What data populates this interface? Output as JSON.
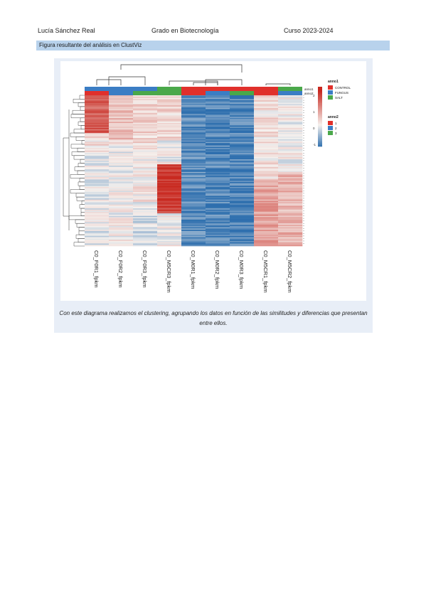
{
  "header": {
    "author": "Lucía Sánchez Real",
    "degree": "Grado en Biotecnología",
    "course": "Curso 2023-2024"
  },
  "section": {
    "title": "Figura resultante del análisis en ClustViz"
  },
  "heatmap": {
    "columns": [
      "C0_F0R1_fpkm",
      "C0_F0R2_fpkm",
      "C0_F0R3_fpkm",
      "C0_M5CR3_fpkm",
      "C0_M0R1_fpkm",
      "C0_M0R2_fpkm",
      "C0_M0R3_fpkm",
      "C0_M5CR1_fpkm",
      "C0_M5CR2_fpkm"
    ],
    "anno_labels": [
      "anno1",
      "anno2"
    ],
    "legend_anno1_title": "anno1",
    "legend_anno1": [
      {
        "label": "CONTROL",
        "color": "#e0302b"
      },
      {
        "label": "FUNGUS",
        "color": "#3b7dc4"
      },
      {
        "label": "SALT",
        "color": "#4aa84a"
      }
    ],
    "legend_anno2_title": "anno2",
    "legend_anno2": [
      {
        "label": "1",
        "color": "#e0302b"
      },
      {
        "label": "2",
        "color": "#3b7dc4"
      },
      {
        "label": "3",
        "color": "#4aa84a"
      }
    ],
    "colorbar_ticks": [
      "2",
      "1",
      "0",
      "-1"
    ],
    "colors": {
      "high": "#c8281f",
      "mid": "#f5f1ee",
      "low": "#2e6fae"
    }
  },
  "caption": "Con este diagrama realizamos el clustering, agrupando los datos en función de las similitudes y diferencias que presentan entre ellos."
}
